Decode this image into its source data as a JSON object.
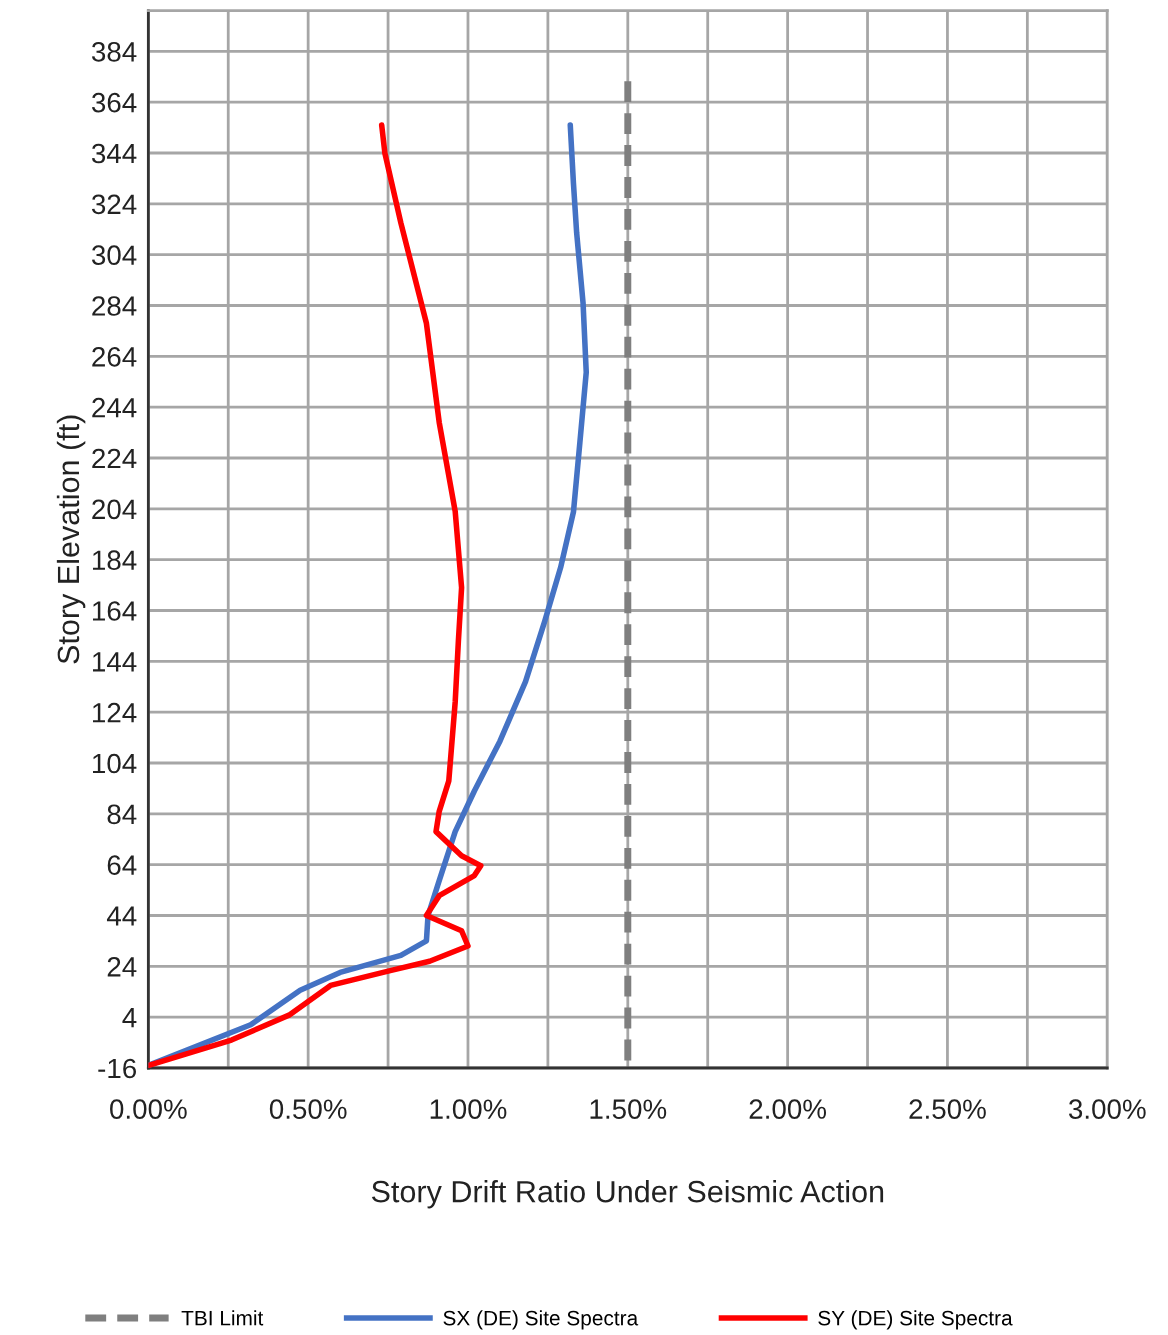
{
  "chart_data": {
    "type": "line",
    "xlabel": "Story Drift Ratio Under Seismic Action",
    "ylabel": "Story Elevation (ft)",
    "xlim": [
      0,
      3
    ],
    "ylim": [
      -16,
      400
    ],
    "xticks": [
      {
        "value": 0,
        "label": "0.00%"
      },
      {
        "value": 0.25,
        "label": null
      },
      {
        "value": 0.5,
        "label": "0.50%"
      },
      {
        "value": 0.75,
        "label": null
      },
      {
        "value": 1,
        "label": "1.00%"
      },
      {
        "value": 1.25,
        "label": null
      },
      {
        "value": 1.5,
        "label": "1.50%"
      },
      {
        "value": 1.75,
        "label": null
      },
      {
        "value": 2,
        "label": "2.00%"
      },
      {
        "value": 2.25,
        "label": null
      },
      {
        "value": 2.5,
        "label": "2.50%"
      },
      {
        "value": 2.75,
        "label": null
      },
      {
        "value": 3,
        "label": "3.00%"
      }
    ],
    "yticks": [
      -16,
      4,
      24,
      44,
      64,
      84,
      104,
      124,
      144,
      164,
      184,
      204,
      224,
      244,
      264,
      284,
      304,
      324,
      344,
      364,
      384
    ],
    "grid": true,
    "legend": "bottom",
    "marker": "none",
    "series": [
      {
        "name": "TBI Limit",
        "color": "#7f7f7f",
        "line_style": "dashed",
        "x": [
          1.5,
          1.5
        ],
        "values": [
          -13,
          376
        ]
      },
      {
        "name": "SX (DE) Site Spectra",
        "color": "#4472c4",
        "line_style": "solid",
        "x": [
          0,
          0.32,
          0.475,
          0.6,
          0.79,
          0.87,
          0.875,
          0.91,
          0.96,
          1.02,
          1.1,
          1.18,
          1.24,
          1.29,
          1.33,
          1.35,
          1.37,
          1.36,
          1.34,
          1.33,
          1.32
        ],
        "values": [
          -15,
          1,
          14.6,
          21.6,
          28.3,
          34,
          44,
          57.7,
          77,
          93,
          112.6,
          136,
          159.7,
          181,
          202.8,
          230,
          257.7,
          285,
          312.6,
          332,
          355
        ]
      },
      {
        "name": "SY (DE) Site Spectra",
        "color": "#ff0000",
        "line_style": "solid",
        "x": [
          0,
          0.26,
          0.44,
          0.57,
          0.76,
          0.88,
          1.0,
          0.98,
          0.87,
          0.91,
          1.02,
          1.04,
          0.98,
          0.9,
          0.91,
          0.94,
          0.96,
          0.97,
          0.98,
          0.96,
          0.91,
          0.87,
          0.79,
          0.74,
          0.73
        ],
        "values": [
          -15,
          -5,
          4.8,
          16.5,
          22.4,
          26,
          32,
          38,
          44,
          51.8,
          59.7,
          63.6,
          67.5,
          77,
          85,
          97,
          128,
          152,
          173,
          203,
          238,
          277,
          316.5,
          344,
          355
        ]
      }
    ]
  }
}
